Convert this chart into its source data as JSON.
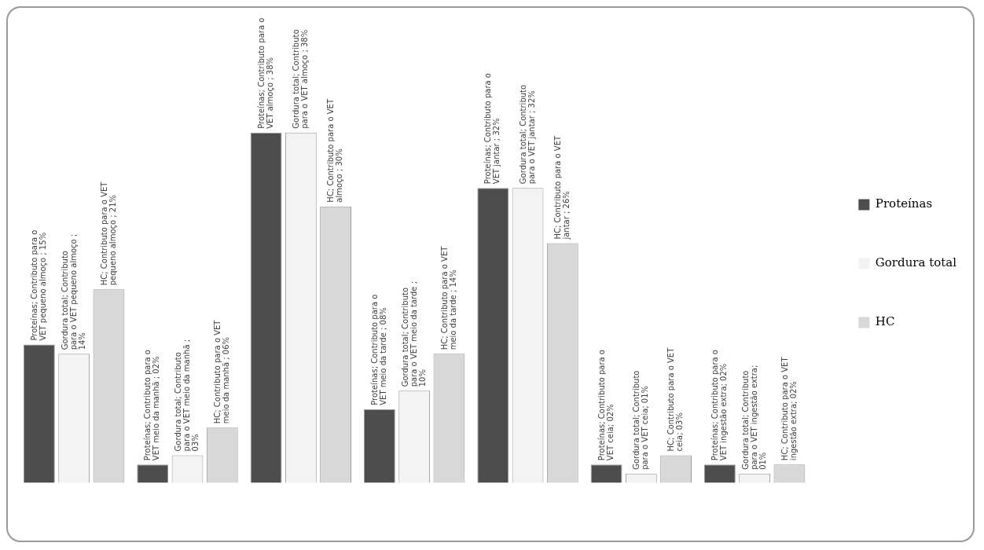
{
  "chart_data": {
    "type": "bar",
    "categories": [
      null,
      null,
      null,
      null,
      null,
      null,
      null
    ],
    "legend": "right",
    "series": [
      {
        "name": "Proteínas",
        "color": "#4d4d4d",
        "values": [
          15,
          2,
          38,
          8,
          32,
          2,
          2
        ],
        "value_labels": [
          "Proteínas; Contributo para o VET pequeno almoço ; 15%",
          "Proteínas; Contributo para o VET meio da manhã ; 02%",
          "Proteínas; Contributo para o VET almoço ; 38%",
          "Proteínas; Contributo para o VET meio da tarde ; 08%",
          "Proteínas; Contributo para o VET jantar ; 32%",
          "Proteínas; Contributo para o VET ceia; 02%",
          "Proteínas; Contributo para o VET ingestão extra; 02%"
        ]
      },
      {
        "name": "Gordura total",
        "color": "#f3f3f3",
        "values": [
          14,
          3,
          38,
          10,
          32,
          1,
          1
        ],
        "value_labels": [
          "Gordura total; Contributo para o VET pequeno almoço ; 14%",
          "Gordura total; Contributo para o VET meio da manhã ; 03%",
          "Gordura total; Contributo para o VET almoço ; 38%",
          "Gordura total; Contributo para o VET meio da tarde ; 10%",
          "Gordura total; Contributo para o VET jantar ; 32%",
          "Gordura total; Contributo para o VET ceia; 01%",
          "Gordura total; Contributo para o VET ingestão extra; 01%"
        ]
      },
      {
        "name": "HC",
        "color": "#d8d8d8",
        "values": [
          21,
          6,
          30,
          14,
          26,
          3,
          2
        ],
        "value_labels": [
          "HC; Contributo para o VET pequeno almoço ; 21%",
          "HC; Contributo para o VET meio da manhã ; 06%",
          "HC; Contributo para o VET almoço ; 30%",
          "HC; Contributo para o VET meio da tarde ; 14%",
          "HC; Contributo para o VET jantar ; 26%",
          "HC; Contributo para o VET ceia; 03%",
          "HC; Contributo para o VET ingestão extra; 02%"
        ]
      }
    ]
  }
}
